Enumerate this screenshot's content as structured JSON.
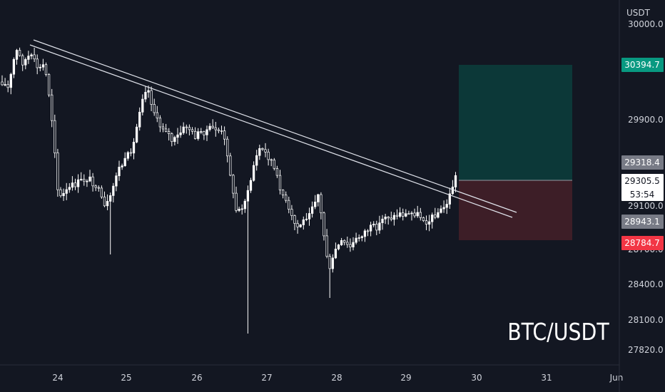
{
  "watermark": "BTC/USDT",
  "chart_data": {
    "type": "candlestick",
    "symbol": "BTC/USDT",
    "price_currency": "USDT",
    "y_axis": {
      "label": "USDT",
      "ticks": [
        "30000.0",
        "29900.0",
        "29100.0",
        "28700.0",
        "28400.0",
        "28100.0",
        "27820.0"
      ],
      "tick_values": [
        30000.0,
        29900.0,
        29100.0,
        28700.0,
        28400.0,
        28100.0,
        27820.0
      ]
    },
    "x_axis": {
      "ticks": [
        "24",
        "25",
        "26",
        "27",
        "28",
        "29",
        "30",
        "31",
        "Jun"
      ]
    },
    "price_tags": [
      {
        "role": "take-profit",
        "label": "30394.7",
        "value": 30394.7,
        "color": "#089981"
      },
      {
        "role": "previous-close",
        "label": "29318.4",
        "value": 29318.4,
        "color": "#787b86"
      },
      {
        "role": "last-price",
        "label": "29305.5",
        "value": 29305.5,
        "countdown": "53:54",
        "color": "#ffffff"
      },
      {
        "role": "entry-low",
        "label": "28943.1",
        "value": 28943.1,
        "color": "#787b86"
      },
      {
        "role": "stop-loss",
        "label": "28784.7",
        "value": 28784.7,
        "color": "#f23645"
      }
    ],
    "position": {
      "direction": "long",
      "target": 30394.7,
      "entry": 29305.5,
      "stop": 28784.7,
      "profit_color": "#0c3a3a",
      "loss_color": "#40202a"
    },
    "trendline": {
      "description": "descending double trendline from May 23 high to May 30",
      "color": "#e0e3eb"
    },
    "colors": {
      "background": "#131722",
      "candle": "#ffffff",
      "axis_text": "#d1d4dc"
    }
  }
}
